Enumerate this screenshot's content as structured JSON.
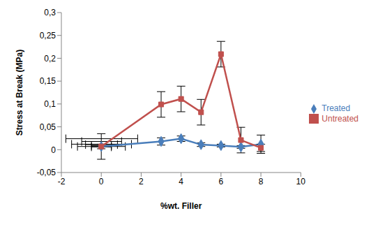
{
  "chart_data": {
    "type": "line",
    "x_label": "%wt. Filler",
    "y_label": "Stress at Break (MPa)",
    "xlim": [
      -2,
      10
    ],
    "xticks": [
      -2,
      0,
      2,
      4,
      6,
      8,
      10
    ],
    "ylim": [
      -0.05,
      0.3
    ],
    "yticks": [
      {
        "value": -0.05,
        "label": "-0,05"
      },
      {
        "value": 0,
        "label": "0"
      },
      {
        "value": 0.05,
        "label": "0,05"
      },
      {
        "value": 0.1,
        "label": "0,1"
      },
      {
        "value": 0.15,
        "label": "0,15"
      },
      {
        "value": 0.2,
        "label": "0,2"
      },
      {
        "value": 0.25,
        "label": "0,25"
      },
      {
        "value": 0.3,
        "label": "0,3"
      }
    ],
    "grid": false,
    "legend": "right",
    "series": [
      {
        "name": "Treated",
        "color": "#4a7ebb",
        "marker": "diamond",
        "x": [
          0,
          3,
          4,
          5,
          6,
          7,
          8
        ],
        "values": [
          0.007,
          0.018,
          0.024,
          0.011,
          0.009,
          0.006,
          0.012
        ],
        "y_error": [
          0.005,
          0.008,
          0.006,
          0.004,
          0.003,
          0.003,
          0.02
        ],
        "x_error": [
          1.2,
          1,
          1.8,
          0.8,
          0.5,
          0.5,
          1.5
        ]
      },
      {
        "name": "Untreated",
        "color": "#c0504d",
        "marker": "square",
        "x": [
          0,
          3,
          4,
          5,
          6,
          7,
          8
        ],
        "values": [
          0.007,
          0.099,
          0.111,
          0.082,
          0.209,
          0.021,
          0.004
        ],
        "y_error": [
          0.028,
          0.028,
          0.028,
          0.028,
          0.028,
          0.028,
          0.008
        ]
      }
    ]
  }
}
